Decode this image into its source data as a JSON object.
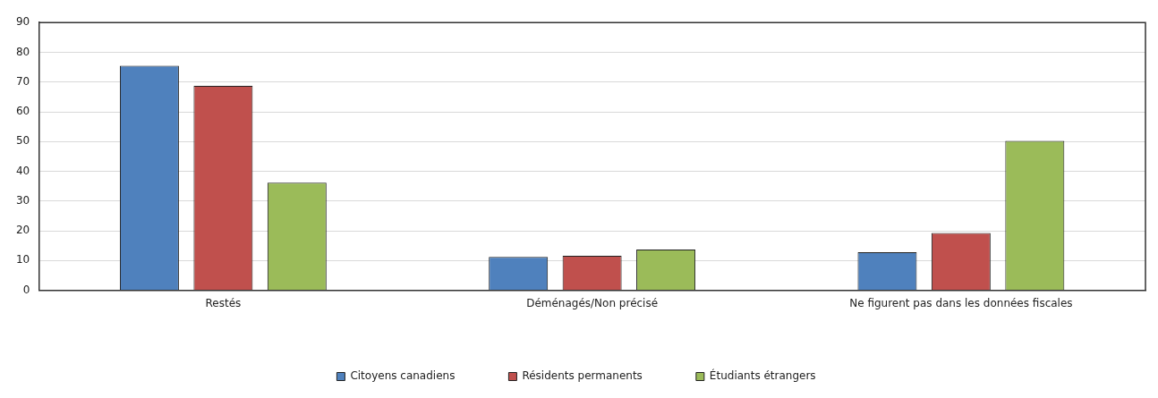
{
  "chart_data": {
    "type": "bar",
    "categories": [
      "Restés",
      "Déménagés/Non précisé",
      "Ne figurent pas dans les données fiscales"
    ],
    "series": [
      {
        "name": "Citoyens canadiens",
        "color": "#4f81bd",
        "values": [
          75.5,
          11.2,
          12.8
        ]
      },
      {
        "name": "Résidents permanents",
        "color": "#c0504d",
        "values": [
          68.7,
          11.6,
          19.3
        ]
      },
      {
        "name": "Étudiants étrangers",
        "color": "#9bbb59",
        "values": [
          36.2,
          13.7,
          50.2
        ]
      }
    ],
    "ylim": [
      0,
      90
    ],
    "yticks": [
      0,
      10,
      20,
      30,
      40,
      50,
      60,
      70,
      80,
      90
    ],
    "grid": "y",
    "legend": "bottom"
  }
}
